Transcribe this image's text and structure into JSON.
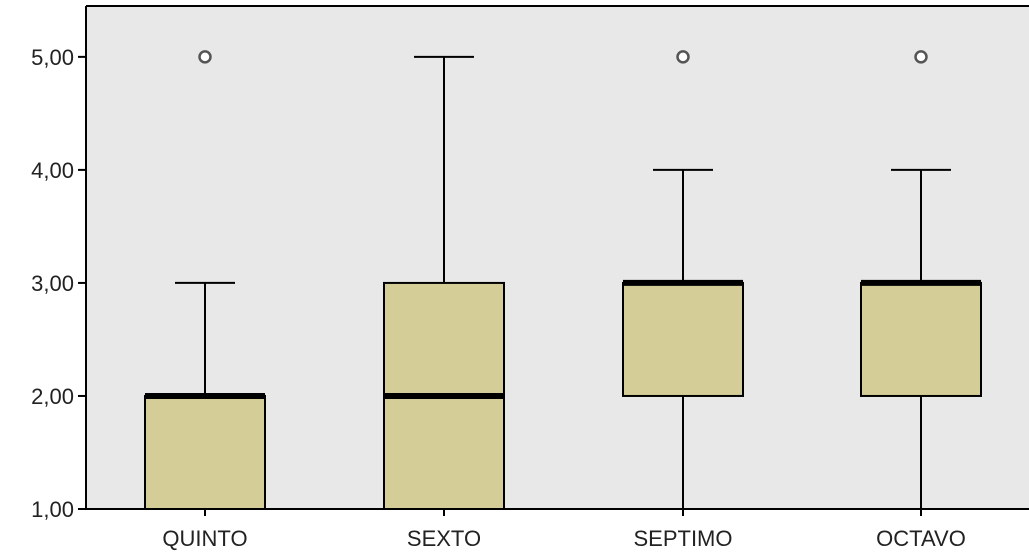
{
  "chart_data": {
    "type": "boxplot",
    "categories": [
      "QUINTO",
      "SEXTO",
      "SEPTIMO",
      "OCTAVO"
    ],
    "boxes": [
      {
        "category": "QUINTO",
        "whisker_low": 1,
        "q1": 1,
        "median": 2,
        "q3": 2,
        "whisker_high": 3,
        "outliers": [
          5
        ]
      },
      {
        "category": "SEXTO",
        "whisker_low": 1,
        "q1": 1,
        "median": 2,
        "q3": 3,
        "whisker_high": 5,
        "outliers": []
      },
      {
        "category": "SEPTIMO",
        "whisker_low": 1,
        "q1": 2,
        "median": 3,
        "q3": 3,
        "whisker_high": 4,
        "outliers": [
          5
        ]
      },
      {
        "category": "OCTAVO",
        "whisker_low": 1,
        "q1": 2,
        "median": 3,
        "q3": 3,
        "whisker_high": 4,
        "outliers": [
          5
        ]
      }
    ],
    "yticks": [
      "1,00",
      "2,00",
      "3,00",
      "4,00",
      "5,00"
    ],
    "ylim": [
      1,
      5.45
    ],
    "grid": false,
    "colors": {
      "box_fill": "#d4cd98",
      "plot_bg": "#e8e8e8",
      "line": "#000000",
      "outlier": "#555555"
    }
  }
}
